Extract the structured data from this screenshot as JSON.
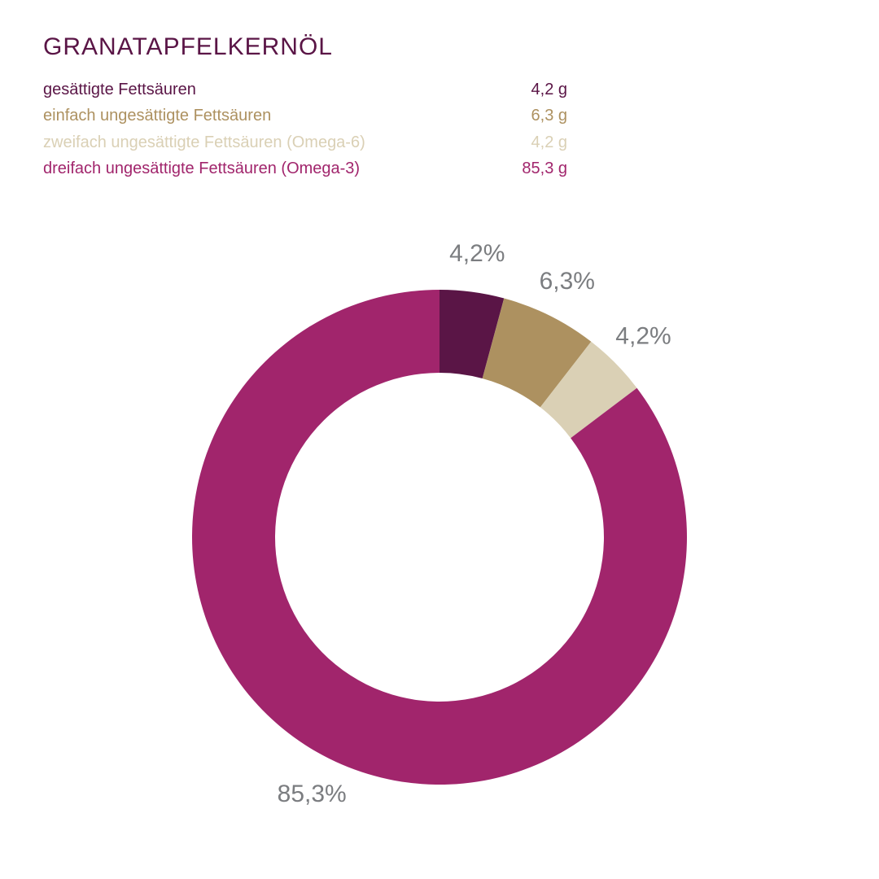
{
  "page": {
    "title": "GRANATAPFELKERNÖL",
    "title_color": "#5a1546"
  },
  "legend": {
    "rows": [
      {
        "label": "gesättigte Fettsäuren",
        "value": "4,2 g",
        "color": "#5a1546"
      },
      {
        "label": "einfach ungesättigte Fettsäuren",
        "value": "6,3 g",
        "color": "#ad9160"
      },
      {
        "label": "zweifach ungesättigte Fettsäuren (Omega-6)",
        "value": "4,2 g",
        "color": "#dad0b5"
      },
      {
        "label": "dreifach ungesättigte Fettsäuren (Omega-3)",
        "value": "85,3 g",
        "color": "#a1256c"
      }
    ]
  },
  "chart_data": {
    "type": "pie",
    "subtype": "donut",
    "title": "GRANATAPFELKERNÖL",
    "start_angle_deg": 0,
    "direction": "clockwise",
    "percent_label_color": "#7b7d80",
    "legend_position": "top-left",
    "slices": [
      {
        "label": "gesättigte Fettsäuren",
        "grams": 4.2,
        "grams_label": "4,2 g",
        "percent": 4.2,
        "percent_label": "4,2%",
        "color": "#5a1546"
      },
      {
        "label": "einfach ungesättigte Fettsäuren",
        "grams": 6.3,
        "grams_label": "6,3 g",
        "percent": 6.3,
        "percent_label": "6,3%",
        "color": "#ad9160"
      },
      {
        "label": "zweifach ungesättigte Fettsäuren (Omega-6)",
        "grams": 4.2,
        "grams_label": "4,2 g",
        "percent": 4.2,
        "percent_label": "4,2%",
        "color": "#dad0b5"
      },
      {
        "label": "dreifach ungesättigte Fettsäuren (Omega-3)",
        "grams": 85.3,
        "grams_label": "85,3 g",
        "percent": 85.3,
        "percent_label": "85,3%",
        "color": "#a1256c"
      }
    ]
  }
}
